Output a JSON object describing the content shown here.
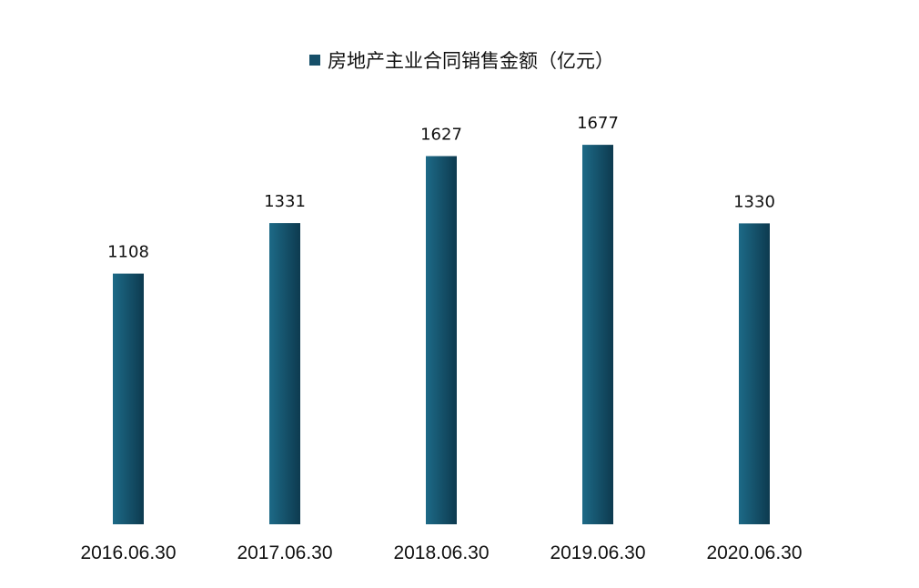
{
  "chart_data": {
    "type": "bar",
    "categories": [
      "2016.06.30",
      "2017.06.30",
      "2018.06.30",
      "2019.06.30",
      "2020.06.30"
    ],
    "series": [
      {
        "name": "房地产主业合同销售金额（亿元）",
        "values": [
          1108,
          1331,
          1627,
          1677,
          1330
        ]
      }
    ],
    "data_labels": [
      "1108",
      "1331",
      "1627",
      "1677",
      "1330"
    ],
    "legend_position": "top",
    "grid": false,
    "ylim": [
      0,
      1800
    ],
    "colors": {
      "bar_light": "#1d6a87",
      "bar_dark": "#0d3a4f",
      "legend_marker": "#164f69"
    }
  }
}
